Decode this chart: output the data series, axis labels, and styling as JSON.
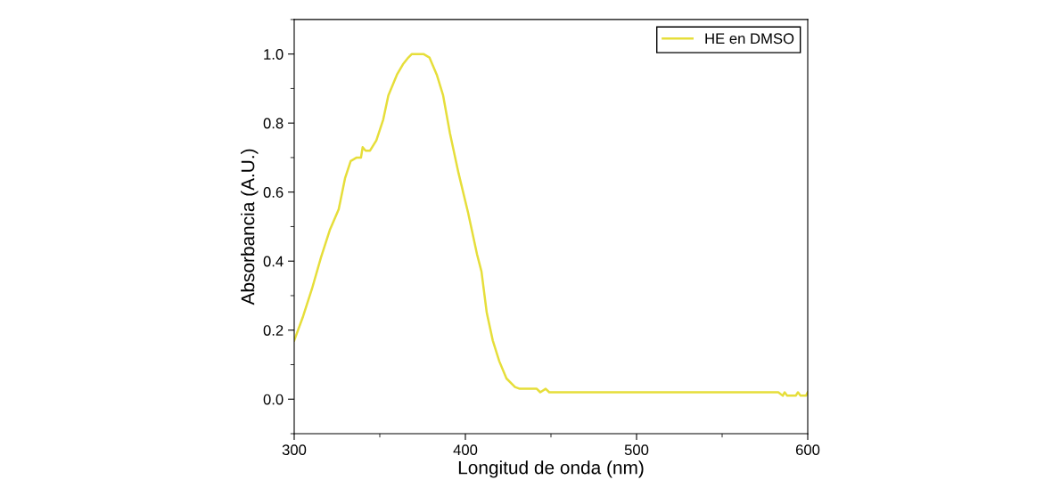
{
  "chart_data": {
    "type": "line",
    "xlabel": "Longitud de onda (nm)",
    "ylabel": "Absorbancia (A.U.)",
    "xlim": [
      300,
      600
    ],
    "xticks": [
      300,
      400,
      500,
      600
    ],
    "ylim": [
      -0.1,
      1.1
    ],
    "yticks": [
      {
        "value": 0,
        "label": "0.0"
      },
      0.2,
      0.4,
      0.6,
      0.8,
      {
        "value": 1,
        "label": "1.0"
      }
    ],
    "grid": false,
    "legend": "top right",
    "marker": "none",
    "line_style": "solid",
    "series": [
      {
        "name": "HE en DMSO",
        "color": "#e6de3a",
        "x": [
          300,
          305.2,
          310.4,
          315.6,
          320.8,
          326,
          329.7,
          333,
          336.5,
          339,
          340,
          341.7,
          344.3,
          348,
          352,
          355,
          360,
          363.5,
          366.7,
          368.75,
          375.5,
          379,
          383.3,
          387,
          391,
          396,
          401.6,
          406.8,
          409.4,
          412.5,
          416,
          419.8,
          424,
          429,
          431.8,
          441.7,
          443.75,
          446.9,
          449,
          582.8,
          585.4,
          586.5,
          588,
          593,
          594.3,
          595.8,
          599,
          600
        ],
        "values": [
          0.17,
          0.24,
          0.32,
          0.41,
          0.49,
          0.55,
          0.64,
          0.69,
          0.7,
          0.7,
          0.73,
          0.72,
          0.72,
          0.75,
          0.81,
          0.88,
          0.94,
          0.97,
          0.99,
          1.0,
          1.0,
          0.99,
          0.94,
          0.88,
          0.77,
          0.655,
          0.54,
          0.42,
          0.37,
          0.25,
          0.17,
          0.11,
          0.06,
          0.035,
          0.03,
          0.03,
          0.02,
          0.03,
          0.02,
          0.02,
          0.01,
          0.02,
          0.01,
          0.01,
          0.02,
          0.01,
          0.01,
          0.02
        ]
      }
    ]
  }
}
